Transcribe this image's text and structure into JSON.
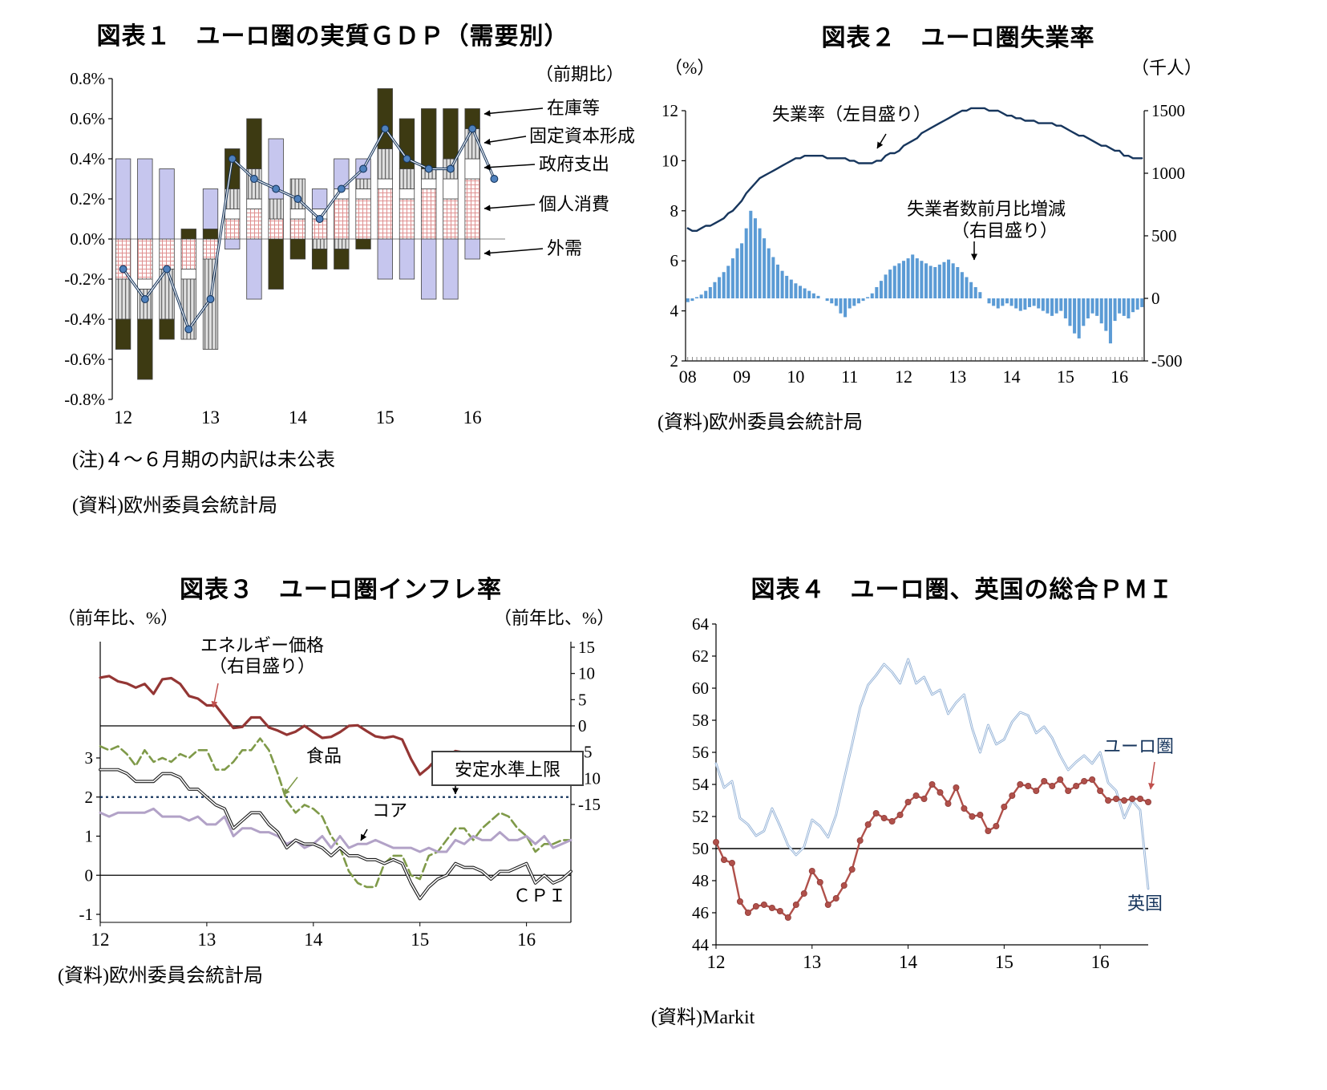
{
  "page": {
    "background": "#ffffff"
  },
  "figures": {
    "fig1": {
      "title": "図表１　ユーロ圏の実質ＧＤＰ（需要別）",
      "qoq_label": "（前期比）",
      "legend": {
        "inventories": "在庫等",
        "fixed_capital": "固定資本形成",
        "government": "政府支出",
        "consumption": "個人消費",
        "external_demand": "外需"
      },
      "note": "(注)４～６月期の内訳は未公表",
      "source": "(資料)欧州委員会統計局"
    },
    "fig2": {
      "title": "図表２　ユーロ圏失業率",
      "unit_left": "（%）",
      "unit_right": "（千人）",
      "ann_rate": "失業率（左目盛り）",
      "ann_change_line1": "失業者数前月比増減",
      "ann_change_line2": "（右目盛り）",
      "source": "(資料)欧州委員会統計局"
    },
    "fig3": {
      "title": "図表３　ユーロ圏インフレ率",
      "unit_left": "（前年比、%）",
      "unit_right": "（前年比、%）",
      "ann_energy_line1": "エネルギー価格",
      "ann_energy_line2": "（右目盛り）",
      "ann_food": "食品",
      "ann_core": "コア",
      "ann_cpi": "ＣＰＩ",
      "stability_box": "安定水準上限",
      "source": "(資料)欧州委員会統計局"
    },
    "fig4": {
      "title": "図表４　ユーロ圏、英国の総合ＰＭＩ",
      "ann_euro": "ユーロ圏",
      "ann_uk": "英国",
      "source": "(資料)Markit"
    }
  },
  "chart_data": [
    {
      "id": "fig1",
      "type": "bar",
      "subtype": "stacked-bars-with-line",
      "title": "図表１　ユーロ圏の実質ＧＤＰ（需要別）",
      "x_quarters": [
        "2012Q1",
        "2012Q2",
        "2012Q3",
        "2012Q4",
        "2013Q1",
        "2013Q2",
        "2013Q3",
        "2013Q4",
        "2014Q1",
        "2014Q2",
        "2014Q3",
        "2014Q4",
        "2015Q1",
        "2015Q2",
        "2015Q3",
        "2015Q4",
        "2016Q1",
        "2016Q2"
      ],
      "x_tick_labels": [
        "12",
        "13",
        "14",
        "15",
        "16"
      ],
      "ylim": [
        -0.8,
        0.8
      ],
      "y_tick_step": 0.2,
      "y_unit": "%",
      "series": [
        {
          "name": "個人消費",
          "pattern": "pink-crosshatch",
          "color": "#e09090",
          "values": [
            -0.2,
            -0.2,
            -0.15,
            -0.15,
            -0.1,
            0.1,
            0.15,
            0.1,
            0.1,
            0.1,
            0.2,
            0.2,
            0.25,
            0.2,
            0.25,
            0.2,
            0.3,
            null
          ]
        },
        {
          "name": "政府支出",
          "pattern": "solid",
          "color": "#ffffff",
          "values": [
            0,
            -0.05,
            0,
            -0.05,
            0,
            0.05,
            0.05,
            0,
            0.05,
            0.05,
            0.05,
            0.05,
            0.05,
            0.05,
            0.05,
            0.1,
            0.1,
            null
          ]
        },
        {
          "name": "固定資本形成",
          "pattern": "gray-vstripe",
          "color": "#e0e0e0",
          "values": [
            -0.2,
            -0.15,
            -0.25,
            -0.3,
            -0.45,
            0.1,
            0.15,
            0.1,
            0.15,
            -0.05,
            -0.05,
            0.05,
            0.15,
            0.1,
            0.05,
            0.1,
            0.15,
            null
          ]
        },
        {
          "name": "在庫等",
          "pattern": "solid",
          "color": "#3d3a12",
          "values": [
            -0.15,
            -0.3,
            -0.1,
            0.05,
            0.05,
            0.2,
            0.25,
            -0.25,
            -0.1,
            -0.1,
            -0.1,
            -0.05,
            0.3,
            0.25,
            0.3,
            0.25,
            0.1,
            null
          ]
        },
        {
          "name": "外需",
          "pattern": "solid",
          "color": "#c6c6ee",
          "values": [
            0.4,
            0.4,
            0.35,
            0,
            0.2,
            -0.05,
            -0.3,
            0.3,
            0,
            0.1,
            0.15,
            0.1,
            -0.2,
            -0.2,
            -0.3,
            -0.3,
            -0.1,
            null
          ]
        }
      ],
      "line_series": {
        "name": "実質ＧＤＰ前期比",
        "color": "#17365d",
        "marker_color": "#4f81bd",
        "values": [
          -0.15,
          -0.3,
          -0.15,
          -0.45,
          -0.3,
          0.4,
          0.3,
          0.25,
          0.2,
          0.1,
          0.25,
          0.35,
          0.55,
          0.4,
          0.35,
          0.35,
          0.55,
          0.3
        ]
      }
    },
    {
      "id": "fig2",
      "type": "line",
      "subtype": "line-with-bars-dual-axis",
      "title": "図表２　ユーロ圏失業率",
      "x_monthly_start": "2008-01",
      "x_monthly_end": "2016-06",
      "x_tick_labels": [
        "08",
        "09",
        "10",
        "11",
        "12",
        "13",
        "14",
        "15",
        "16"
      ],
      "left_axis": {
        "label": "（%）",
        "ylim": [
          2,
          12
        ],
        "tick_step": 2
      },
      "right_axis": {
        "label": "（千人）",
        "ylim": [
          -500,
          1500
        ],
        "tick_step": 500
      },
      "line": {
        "name": "失業率（左目盛り）",
        "axis": "left",
        "color": "#17365d",
        "values": [
          7.3,
          7.2,
          7.2,
          7.3,
          7.4,
          7.4,
          7.5,
          7.6,
          7.7,
          7.9,
          8.0,
          8.2,
          8.4,
          8.7,
          8.9,
          9.1,
          9.3,
          9.4,
          9.5,
          9.6,
          9.7,
          9.8,
          9.9,
          10.0,
          10.1,
          10.1,
          10.2,
          10.2,
          10.2,
          10.2,
          10.2,
          10.1,
          10.1,
          10.1,
          10.1,
          10.1,
          10.0,
          10.0,
          9.9,
          9.9,
          9.9,
          9.9,
          10.0,
          10.0,
          10.2,
          10.3,
          10.3,
          10.4,
          10.6,
          10.7,
          10.8,
          10.9,
          11.1,
          11.2,
          11.3,
          11.4,
          11.5,
          11.6,
          11.7,
          11.8,
          11.9,
          12.0,
          12.0,
          12.1,
          12.1,
          12.1,
          12.1,
          12.0,
          12.0,
          12.0,
          11.9,
          11.8,
          11.8,
          11.7,
          11.7,
          11.6,
          11.6,
          11.6,
          11.5,
          11.5,
          11.5,
          11.5,
          11.4,
          11.4,
          11.3,
          11.2,
          11.1,
          11.0,
          11.0,
          10.9,
          10.8,
          10.7,
          10.6,
          10.6,
          10.5,
          10.4,
          10.4,
          10.2,
          10.2,
          10.1,
          10.1,
          10.1
        ]
      },
      "bars": {
        "name": "失業者数前月比増減（右目盛り）",
        "axis": "right",
        "color": "#5b9bd5",
        "values": [
          -30,
          -20,
          10,
          30,
          60,
          90,
          130,
          170,
          210,
          260,
          320,
          400,
          440,
          560,
          700,
          640,
          560,
          480,
          400,
          330,
          270,
          220,
          180,
          150,
          120,
          100,
          80,
          60,
          40,
          20,
          0,
          -20,
          -40,
          -60,
          -120,
          -150,
          -80,
          -60,
          -40,
          -20,
          10,
          40,
          90,
          140,
          190,
          230,
          260,
          280,
          300,
          320,
          350,
          320,
          300,
          280,
          260,
          250,
          270,
          290,
          310,
          280,
          250,
          210,
          170,
          130,
          90,
          50,
          0,
          -40,
          -60,
          -80,
          -60,
          -40,
          -60,
          -80,
          -100,
          -90,
          -70,
          -60,
          -80,
          -100,
          -120,
          -140,
          -120,
          -100,
          -160,
          -220,
          -280,
          -320,
          -220,
          -160,
          -120,
          -140,
          -200,
          -260,
          -360,
          -180,
          -120,
          -140,
          -160,
          -110,
          -90,
          -70
        ]
      }
    },
    {
      "id": "fig3",
      "type": "line",
      "subtype": "multi-line-dual-axis",
      "title": "図表３　ユーロ圏インフレ率",
      "x_monthly_start": "2012-01",
      "x_monthly_end": "2016-06",
      "x_tick_labels": [
        "12",
        "13",
        "14",
        "15",
        "16"
      ],
      "left_axis": {
        "label": "（前年比、%）",
        "ylim": [
          -1,
          3
        ],
        "ticks": [
          3,
          2,
          1,
          0,
          -1
        ]
      },
      "right_axis": {
        "label": "（前年比、%）",
        "ylim": [
          -15,
          15
        ],
        "ticks": [
          15,
          10,
          5,
          0,
          -5,
          -10,
          -15
        ]
      },
      "reference_lines": [
        {
          "axis": "right",
          "value": 0,
          "style": "solid",
          "color": "#000000"
        },
        {
          "axis": "left",
          "value": 2,
          "style": "dotted",
          "color": "#17365d",
          "label": "安定水準上限"
        },
        {
          "axis": "left",
          "value": 0,
          "style": "solid",
          "color": "#000000"
        }
      ],
      "series": [
        {
          "name": "エネルギー価格（右目盛り）",
          "axis": "right",
          "color": "#943634",
          "width": 3.2,
          "values": [
            9.2,
            9.5,
            8.5,
            8.1,
            7.3,
            8.0,
            6.1,
            8.9,
            9.1,
            8.0,
            5.7,
            5.2,
            3.9,
            3.9,
            1.7,
            -0.4,
            -0.2,
            1.6,
            1.6,
            -0.3,
            -0.9,
            -1.7,
            -1.1,
            0.0,
            -1.2,
            -2.3,
            -2.1,
            -1.2,
            0.0,
            0.1,
            -1.0,
            -2.0,
            -2.3,
            -2.0,
            -2.6,
            -6.3,
            -9.3,
            -7.9,
            -6.0,
            -5.8,
            -4.8,
            -5.1,
            -5.6,
            -7.2,
            -8.9,
            -8.5,
            -7.3,
            -5.8,
            -5.4,
            -8.1,
            -8.7,
            -8.7,
            -8.1,
            -6.4
          ]
        },
        {
          "name": "食品",
          "axis": "left",
          "color": "#7f9a49",
          "width": 2.6,
          "dash": "10 5",
          "values": [
            3.3,
            3.2,
            3.3,
            3.1,
            2.8,
            3.2,
            2.9,
            3.0,
            2.9,
            3.1,
            3.0,
            3.2,
            3.2,
            2.7,
            2.7,
            2.9,
            3.2,
            3.2,
            3.5,
            3.2,
            2.6,
            1.9,
            1.6,
            1.8,
            1.7,
            1.5,
            1.0,
            0.7,
            0.1,
            -0.2,
            -0.3,
            -0.3,
            0.3,
            0.5,
            0.5,
            0.0,
            -0.1,
            0.5,
            0.6,
            0.9,
            1.2,
            1.2,
            0.9,
            1.2,
            1.4,
            1.6,
            1.5,
            1.2,
            1.0,
            0.6,
            0.8,
            0.8,
            0.9,
            0.9
          ]
        },
        {
          "name": "コア",
          "axis": "left",
          "color": "#b2a2c7",
          "width": 3,
          "values": [
            1.6,
            1.5,
            1.6,
            1.6,
            1.6,
            1.6,
            1.7,
            1.5,
            1.5,
            1.5,
            1.4,
            1.5,
            1.3,
            1.3,
            1.5,
            1.0,
            1.2,
            1.2,
            1.1,
            1.1,
            1.0,
            0.8,
            0.9,
            0.7,
            0.8,
            1.0,
            0.7,
            1.0,
            0.7,
            0.8,
            0.8,
            0.9,
            0.8,
            0.7,
            0.7,
            0.7,
            0.6,
            0.7,
            0.6,
            0.6,
            0.9,
            0.8,
            1.0,
            0.9,
            0.9,
            1.1,
            0.9,
            0.9,
            1.0,
            0.8,
            1.0,
            0.7,
            0.8,
            0.9
          ]
        },
        {
          "name": "ＣＰＩ",
          "axis": "left",
          "color": "#1a1a1a",
          "width": 3.8,
          "double_line": true,
          "values": [
            2.7,
            2.7,
            2.7,
            2.6,
            2.4,
            2.4,
            2.4,
            2.6,
            2.6,
            2.5,
            2.2,
            2.2,
            2.0,
            1.8,
            1.7,
            1.2,
            1.4,
            1.6,
            1.6,
            1.3,
            1.1,
            0.7,
            0.9,
            0.8,
            0.8,
            0.7,
            0.5,
            0.7,
            0.5,
            0.5,
            0.4,
            0.4,
            0.3,
            0.4,
            0.3,
            -0.2,
            -0.6,
            -0.3,
            -0.1,
            0.0,
            0.3,
            0.2,
            0.2,
            0.1,
            -0.1,
            0.1,
            0.1,
            0.2,
            0.3,
            -0.2,
            0.0,
            -0.2,
            -0.1,
            0.1
          ]
        }
      ]
    },
    {
      "id": "fig4",
      "type": "line",
      "title": "図表４　ユーロ圏、英国の総合ＰＭＩ",
      "x_monthly_start": "2012-01",
      "x_monthly_end": "2016-07",
      "x_tick_labels": [
        "12",
        "13",
        "14",
        "15",
        "16"
      ],
      "ylim": [
        44,
        64
      ],
      "y_tick_step": 2,
      "reference_line": {
        "value": 50,
        "color": "#000000"
      },
      "series": [
        {
          "name": "英国",
          "color": "#95b3d7",
          "width": 2.8,
          "values": [
            55.3,
            53.8,
            54.2,
            51.9,
            51.5,
            50.8,
            51.1,
            52.5,
            51.4,
            50.2,
            49.6,
            50.1,
            51.8,
            51.4,
            50.7,
            52.1,
            54.3,
            56.5,
            58.8,
            60.2,
            60.8,
            61.5,
            61.0,
            60.3,
            61.8,
            60.3,
            60.7,
            59.6,
            59.9,
            58.4,
            59.1,
            59.6,
            57.5,
            56.0,
            57.7,
            56.5,
            56.8,
            57.9,
            58.5,
            58.3,
            57.2,
            57.6,
            56.9,
            55.8,
            54.9,
            55.4,
            55.8,
            55.3,
            56.0,
            54.1,
            53.6,
            51.9,
            53.0,
            52.4,
            47.5
          ]
        },
        {
          "name": "ユーロ圏",
          "color": "#b0504a",
          "width": 2.4,
          "markers": true,
          "values": [
            50.4,
            49.3,
            49.1,
            46.7,
            46.0,
            46.4,
            46.5,
            46.3,
            46.1,
            45.7,
            46.5,
            47.2,
            48.6,
            47.9,
            46.5,
            46.9,
            47.7,
            48.7,
            50.5,
            51.5,
            52.2,
            51.9,
            51.7,
            52.1,
            52.9,
            53.3,
            53.1,
            54.0,
            53.5,
            52.8,
            53.8,
            52.5,
            52.0,
            52.1,
            51.1,
            51.4,
            52.6,
            53.3,
            54.0,
            53.9,
            53.6,
            54.2,
            53.9,
            54.3,
            53.6,
            53.9,
            54.2,
            54.3,
            53.6,
            53.0,
            53.1,
            53.0,
            53.1,
            53.1,
            52.9
          ]
        }
      ]
    }
  ]
}
